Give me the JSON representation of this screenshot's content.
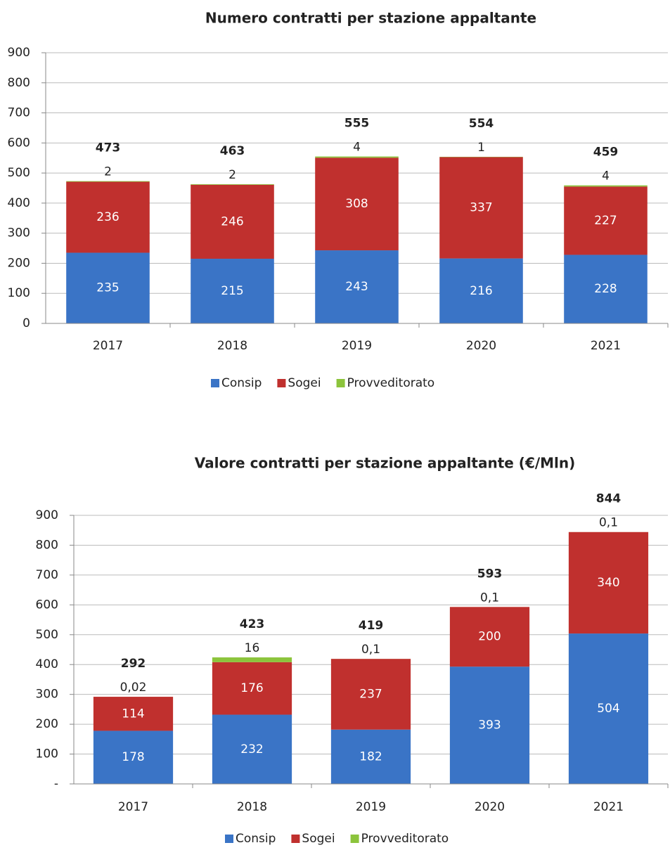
{
  "chart_data": [
    {
      "type": "bar",
      "stacked": true,
      "title": "Numero contratti per stazione appaltante",
      "categories": [
        "2017",
        "2018",
        "2019",
        "2020",
        "2021"
      ],
      "series": [
        {
          "name": "Consip",
          "color": "#3a74c6",
          "values": [
            235,
            215,
            243,
            216,
            228
          ]
        },
        {
          "name": "Sogei",
          "color": "#c0302e",
          "values": [
            236,
            246,
            308,
            337,
            227
          ]
        },
        {
          "name": "Provveditorato",
          "color": "#8cc43c",
          "values": [
            2,
            2,
            4,
            1,
            4
          ]
        }
      ],
      "totals": [
        473,
        463,
        555,
        554,
        459
      ],
      "ylim": [
        0,
        900
      ],
      "yticks": [
        0,
        100,
        200,
        300,
        400,
        500,
        600,
        700,
        800,
        900
      ],
      "grid": true
    },
    {
      "type": "bar",
      "stacked": true,
      "title": "Valore contratti per stazione appaltante (€/Mln)",
      "categories": [
        "2017",
        "2018",
        "2019",
        "2020",
        "2021"
      ],
      "series": [
        {
          "name": "Consip",
          "color": "#3a74c6",
          "values": [
            178,
            232,
            182,
            393,
            504
          ]
        },
        {
          "name": "Sogei",
          "color": "#c0302e",
          "values": [
            114,
            176,
            237,
            200,
            340
          ]
        },
        {
          "name": "Provveditorato",
          "color": "#8cc43c",
          "values": [
            0.02,
            16,
            0.1,
            0.1,
            0.1
          ],
          "value_labels": [
            "0,02",
            "16",
            "0,1",
            "0,1",
            "0,1"
          ]
        }
      ],
      "totals": [
        292,
        423,
        419,
        593,
        844
      ],
      "ylim": [
        0,
        900
      ],
      "yticks": [
        {
          "value": 0,
          "label": "-"
        },
        100,
        200,
        300,
        400,
        500,
        600,
        700,
        800,
        900
      ],
      "grid": true
    }
  ]
}
